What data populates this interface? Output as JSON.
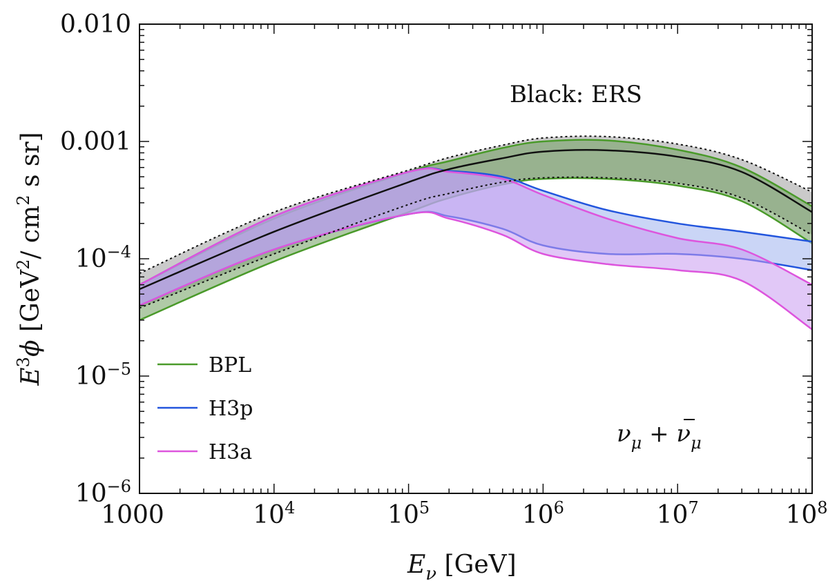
{
  "chart_data": {
    "type": "area",
    "xscale": "log",
    "yscale": "log",
    "xlim": [
      1000,
      100000000
    ],
    "ylim": [
      1e-06,
      0.01
    ],
    "grid": false,
    "legend_position": "bottom-left",
    "x_ticks": [
      {
        "value": 1000,
        "mant": "1000",
        "exp": ""
      },
      {
        "value": 10000,
        "mant": "10",
        "exp": "4"
      },
      {
        "value": 100000,
        "mant": "10",
        "exp": "5"
      },
      {
        "value": 1000000,
        "mant": "10",
        "exp": "6"
      },
      {
        "value": 10000000,
        "mant": "10",
        "exp": "7"
      },
      {
        "value": 100000000,
        "mant": "10",
        "exp": "8"
      }
    ],
    "y_ticks": [
      {
        "value": 1e-06,
        "mant": "10",
        "exp": "−6"
      },
      {
        "value": 1e-05,
        "mant": "10",
        "exp": "−5"
      },
      {
        "value": 0.0001,
        "mant": "10",
        "exp": "−4"
      },
      {
        "value": 0.001,
        "mant": "0.001",
        "exp": ""
      },
      {
        "value": 0.01,
        "mant": "0.010",
        "exp": ""
      }
    ],
    "xlabel": {
      "main": "E",
      "sub": "ν",
      "rest": " [GeV]"
    },
    "ylabel": {
      "main": "E",
      "sup": "3",
      "phi": "ϕ",
      "rest1": " [GeV",
      "sup2": "2",
      "rest2": "/ cm",
      "sup3": "2",
      "rest3": " s sr]"
    },
    "annotations": {
      "black_note": "Black: ERS",
      "flavor": {
        "nu": "ν",
        "sub": "μ",
        "plus": " + ",
        "nubar": "ν",
        "sub2": "μ"
      }
    },
    "x": [
      1000,
      10000,
      100000,
      200000,
      500000,
      1000000,
      3000000,
      10000000,
      30000000,
      100000000
    ],
    "series": [
      {
        "name": "BPL",
        "color": "#4a9a2a",
        "fill": "#6f9e5e",
        "upper": [
          6e-05,
          0.00022,
          0.00055,
          0.00068,
          0.00088,
          0.001,
          0.00102,
          0.00085,
          0.0006,
          0.00028
        ],
        "lower": [
          3e-05,
          9.5e-05,
          0.00025,
          0.00033,
          0.00043,
          0.00048,
          0.00048,
          0.00042,
          0.00031,
          0.000135
        ]
      },
      {
        "name": "H3p",
        "color": "#2255dd",
        "fill": "#9fb2ee",
        "upper": [
          6e-05,
          0.00023,
          0.00055,
          0.00056,
          0.0005,
          0.00038,
          0.00026,
          0.0002,
          0.00017,
          0.00014
        ],
        "lower": [
          4e-05,
          0.00012,
          0.00024,
          0.00023,
          0.00018,
          0.00013,
          0.00011,
          0.00011,
          0.0001,
          8e-05
        ]
      },
      {
        "name": "H3a",
        "color": "#dd55dd",
        "fill": "#c99bf0",
        "upper": [
          6e-05,
          0.00023,
          0.00055,
          0.00055,
          0.00048,
          0.00035,
          0.00022,
          0.00015,
          0.00012,
          6e-05
        ],
        "lower": [
          4e-05,
          0.00012,
          0.00024,
          0.00022,
          0.00016,
          0.00011,
          9e-05,
          8e-05,
          6.5e-05,
          2.5e-05
        ]
      }
    ],
    "ers": {
      "name": "ERS",
      "color": "#111111",
      "fill": "#b8b8b8",
      "central": [
        5.5e-05,
        0.00017,
        0.00045,
        0.00058,
        0.00072,
        0.00082,
        0.00084,
        0.00074,
        0.00055,
        0.00025
      ],
      "upper": [
        7.5e-05,
        0.00025,
        0.00057,
        0.00073,
        0.00093,
        0.00107,
        0.0011,
        0.00095,
        0.0007,
        0.00037
      ],
      "lower": [
        3.8e-05,
        0.00011,
        0.00029,
        0.00036,
        0.00045,
        0.00049,
        0.00049,
        0.00044,
        0.00033,
        0.00016
      ]
    }
  }
}
